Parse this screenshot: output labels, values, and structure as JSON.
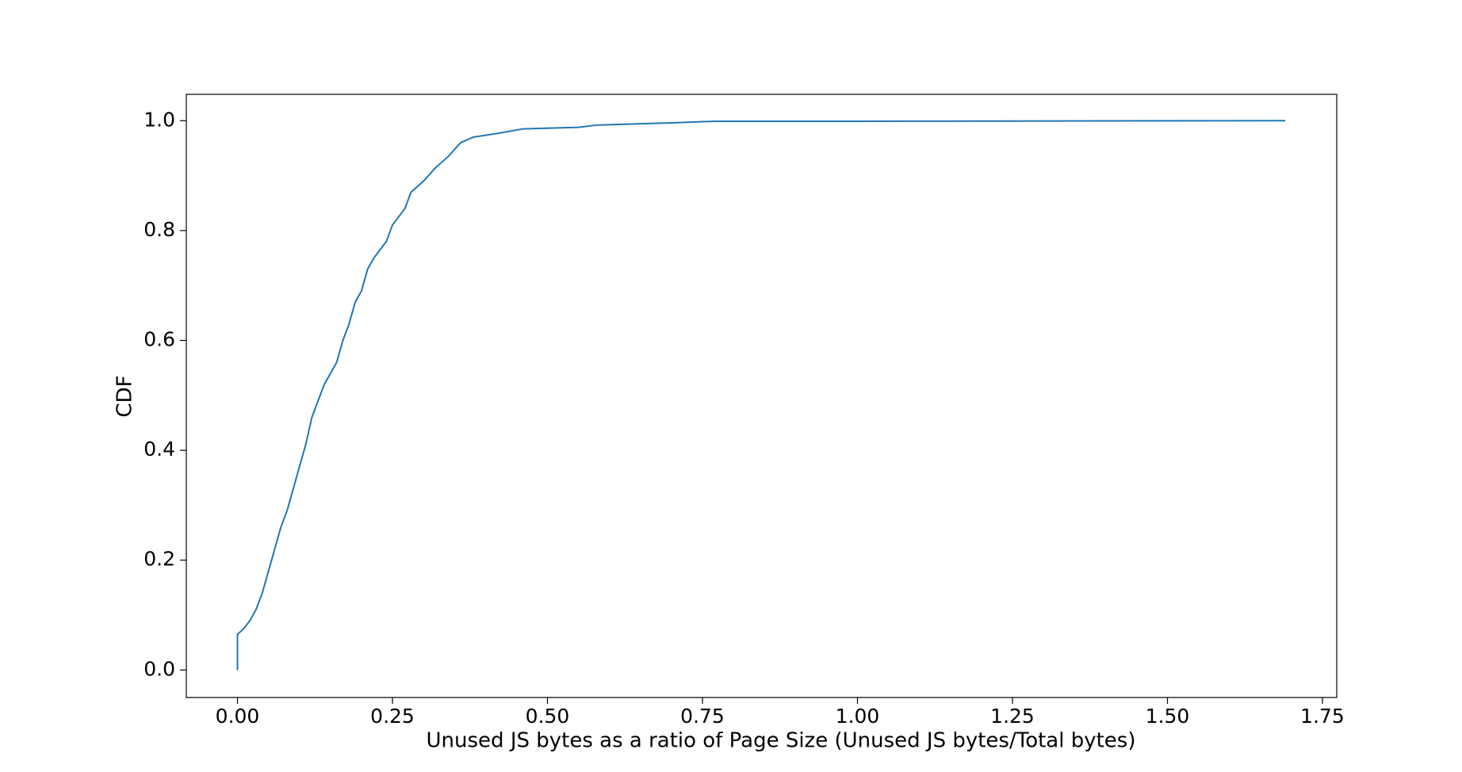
{
  "chart_data": {
    "type": "line",
    "xlabel": "Unused JS bytes as a ratio of Page Size (Unused JS bytes/Total bytes)",
    "ylabel": "CDF",
    "series": [
      {
        "color": "#1f77b4",
        "x": [
          0,
          0,
          0.01,
          0.02,
          0.03,
          0.04,
          0.05,
          0.06,
          0.07,
          0.08,
          0.09,
          0.1,
          0.11,
          0.12,
          0.13,
          0.14,
          0.16,
          0.17,
          0.18,
          0.19,
          0.2,
          0.21,
          0.22,
          0.24,
          0.25,
          0.27,
          0.28,
          0.3,
          0.32,
          0.34,
          0.36,
          0.38,
          0.42,
          0.46,
          0.55,
          0.58,
          0.7,
          0.77,
          1.0,
          1.69
        ],
        "values": [
          0,
          0.065,
          0.075,
          0.09,
          0.11,
          0.14,
          0.18,
          0.22,
          0.26,
          0.29,
          0.33,
          0.37,
          0.41,
          0.46,
          0.49,
          0.52,
          0.56,
          0.6,
          0.63,
          0.67,
          0.69,
          0.73,
          0.75,
          0.78,
          0.81,
          0.84,
          0.87,
          0.89,
          0.915,
          0.935,
          0.96,
          0.97,
          0.977,
          0.985,
          0.988,
          0.992,
          0.996,
          0.999,
          0.999,
          1.0
        ]
      }
    ],
    "xlim": [
      -0.0825,
      1.773
    ],
    "ylim": [
      -0.05,
      1.048
    ],
    "xticks": [
      {
        "value": 0,
        "label": "0.00"
      },
      {
        "value": 0.25,
        "label": "0.25"
      },
      {
        "value": 0.5,
        "label": "0.50"
      },
      {
        "value": 0.75,
        "label": "0.75"
      },
      {
        "value": 1,
        "label": "1.00"
      },
      {
        "value": 1.25,
        "label": "1.25"
      },
      {
        "value": 1.5,
        "label": "1.50"
      },
      {
        "value": 1.75,
        "label": "1.75"
      }
    ],
    "yticks": [
      {
        "value": 0,
        "label": "0.0"
      },
      {
        "value": 0.2,
        "label": "0.2"
      },
      {
        "value": 0.4,
        "label": "0.4"
      },
      {
        "value": 0.6,
        "label": "0.6"
      },
      {
        "value": 0.8,
        "label": "0.8"
      },
      {
        "value": 1,
        "label": "1.0"
      }
    ]
  }
}
